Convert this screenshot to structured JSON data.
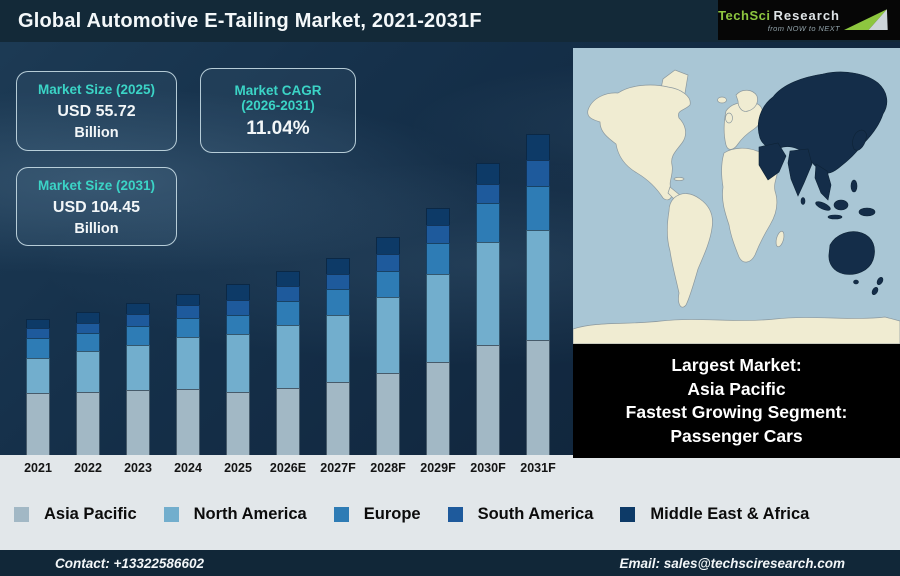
{
  "header": {
    "title": "Global Automotive E-Tailing Market, 2021-2031F"
  },
  "logo": {
    "brand_primary": "TechSci",
    "brand_secondary": "Research",
    "tagline": "from NOW to NEXT"
  },
  "stats": [
    {
      "label": "Market Size (2025)",
      "value": "USD 55.72",
      "unit": "Billion"
    },
    {
      "label_line1": "Market CAGR",
      "label_line2": "(2026-2031)",
      "value": "11.04%"
    },
    {
      "label": "Market Size (2031)",
      "value": "USD 104.45",
      "unit": "Billion"
    }
  ],
  "chart_data": {
    "type": "bar",
    "stacked": true,
    "unit": "USD Billion",
    "categories": [
      "2021",
      "2022",
      "2023",
      "2024",
      "2025",
      "2026E",
      "2027F",
      "2028F",
      "2029F",
      "2030F",
      "2031F"
    ],
    "series": [
      {
        "name": "Asia Pacific",
        "color": "#a2b8c5",
        "values": [
          20.1,
          20.6,
          21.2,
          21.4,
          20.4,
          22.0,
          23.7,
          26.6,
          30.2,
          36.0,
          37.5
        ]
      },
      {
        "name": "North America",
        "color": "#72aecd",
        "values": [
          11.4,
          13.3,
          14.7,
          17.1,
          19.2,
          20.5,
          21.9,
          25.0,
          28.7,
          33.4,
          35.8
        ]
      },
      {
        "name": "Europe",
        "color": "#2e7cb5",
        "values": [
          6.5,
          5.8,
          6.0,
          6.0,
          6.2,
          7.7,
          8.4,
          8.4,
          10.1,
          12.8,
          14.3
        ]
      },
      {
        "name": "South America",
        "color": "#1e5a9c",
        "values": [
          3.3,
          3.5,
          4.0,
          4.3,
          4.9,
          4.8,
          4.9,
          5.4,
          6.0,
          6.0,
          8.5
        ]
      },
      {
        "name": "Middle East & Africa",
        "color": "#0d3a67",
        "values": [
          2.9,
          3.3,
          3.6,
          3.8,
          5.0,
          5.0,
          5.2,
          5.7,
          5.6,
          6.9,
          8.4
        ]
      }
    ],
    "totals": [
      44.2,
      46.5,
      49.5,
      52.6,
      55.7,
      60.0,
      64.1,
      71.1,
      80.6,
      95.1,
      104.5
    ],
    "ylim": [
      0,
      110
    ],
    "legend_position": "bottom",
    "grid": false
  },
  "map": {
    "highlight_region": "Asia Pacific",
    "ocean_color": "#a9c6d5",
    "land_color": "#f0ecd2",
    "highlight_color": "#142d49"
  },
  "highlight_box": {
    "lines": [
      "Largest Market:",
      "Asia Pacific",
      "Fastest Growing Segment:",
      "Passenger Cars"
    ]
  },
  "footer": {
    "contact": "Contact: +13322586602",
    "email": "Email: sales@techsciresearch.com"
  },
  "colors": {
    "accent_teal": "#3bd4c6",
    "header_navy": "#132938",
    "footer_navy": "#112738",
    "logo_green": "#8dc63f"
  }
}
